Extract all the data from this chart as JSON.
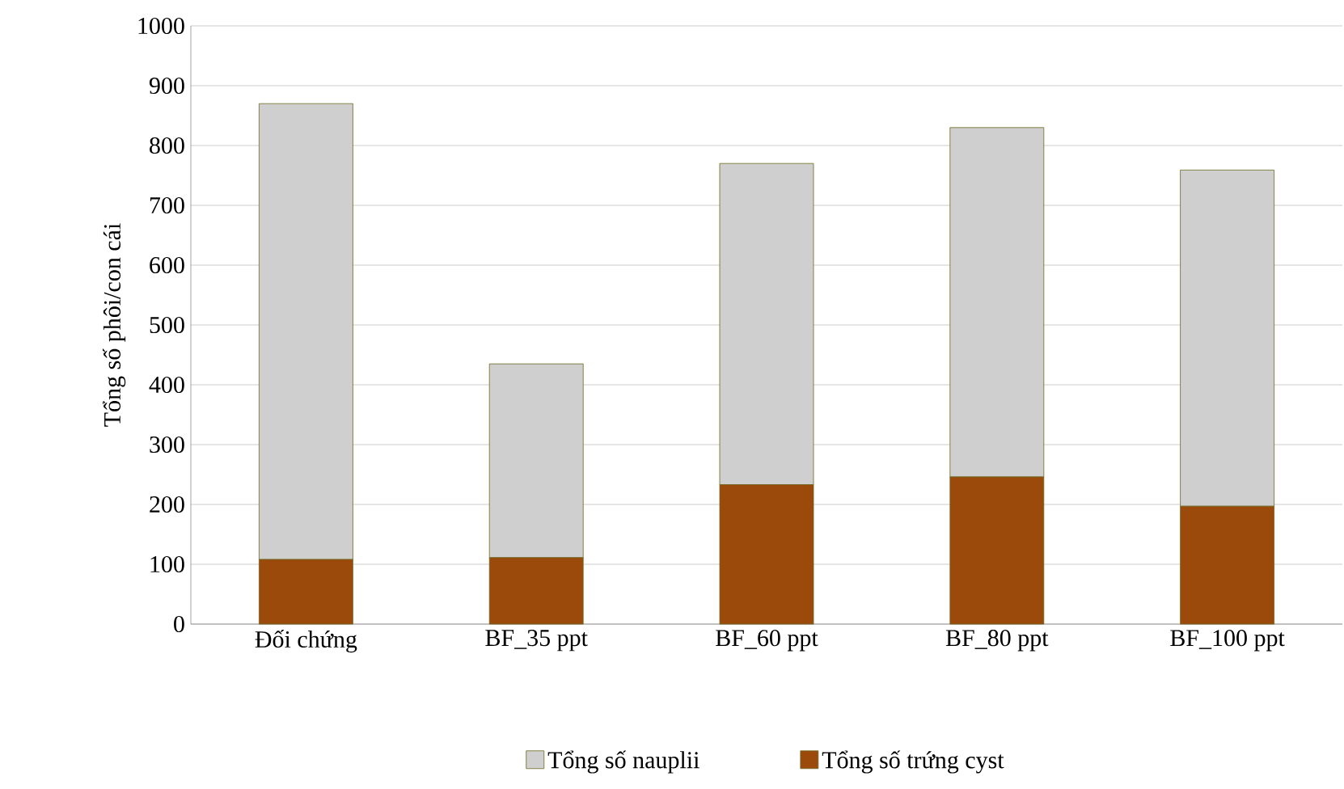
{
  "chart_data": {
    "type": "bar",
    "stacked": true,
    "ylabel": "Tổng số phôi/con cái",
    "categories": [
      "Đối chứng",
      "BF_35 ppt",
      "BF_60 ppt",
      "BF_80 ppt",
      "BF_100 ppt"
    ],
    "series": [
      {
        "name": "Tổng số trứng cyst",
        "color": "#9c4a0b",
        "values": [
          108,
          111,
          233,
          246,
          197
        ]
      },
      {
        "name": "Tổng số nauplii",
        "color": "#cfcfcf",
        "values": [
          762,
          324,
          537,
          584,
          562
        ]
      }
    ],
    "ylim": [
      0,
      1000
    ],
    "yticks": [
      0,
      100,
      200,
      300,
      400,
      500,
      600,
      700,
      800,
      900,
      1000
    ],
    "grid": "y",
    "legend": "bottom"
  }
}
